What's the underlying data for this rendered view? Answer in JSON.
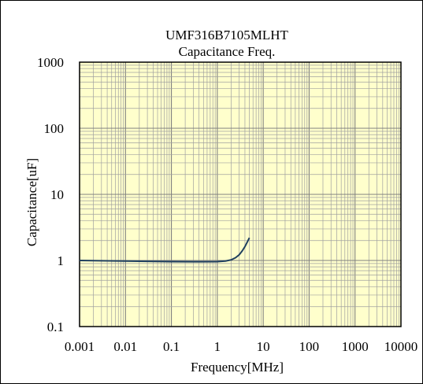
{
  "chart_data": {
    "type": "line",
    "title": "UMF316B7105MLHT",
    "subtitle": "Capacitance Freq.",
    "xlabel": "Frequency[MHz]",
    "ylabel": "Capacitance[uF]",
    "x_scale": "log",
    "y_scale": "log",
    "xlim": [
      0.001,
      10000
    ],
    "ylim": [
      0.1,
      1000
    ],
    "x_tick_labels": [
      "0.001",
      "0.01",
      "0.1",
      "1",
      "10",
      "100",
      "1000",
      "10000"
    ],
    "y_tick_labels": [
      "0.1",
      "1",
      "10",
      "100",
      "1000"
    ],
    "grid": true,
    "legend": "none",
    "plot_background": "#ffffcc",
    "grid_color": "#a0a0a0",
    "series": [
      {
        "color": "#1f3f5f",
        "x": [
          0.001,
          0.003,
          0.01,
          0.03,
          0.1,
          0.3,
          1,
          1.5,
          2,
          2.5,
          3,
          3.5,
          4,
          4.5,
          5
        ],
        "y": [
          1.0,
          0.99,
          0.98,
          0.97,
          0.96,
          0.955,
          0.96,
          0.98,
          1.02,
          1.1,
          1.22,
          1.4,
          1.62,
          1.9,
          2.2
        ]
      }
    ]
  }
}
